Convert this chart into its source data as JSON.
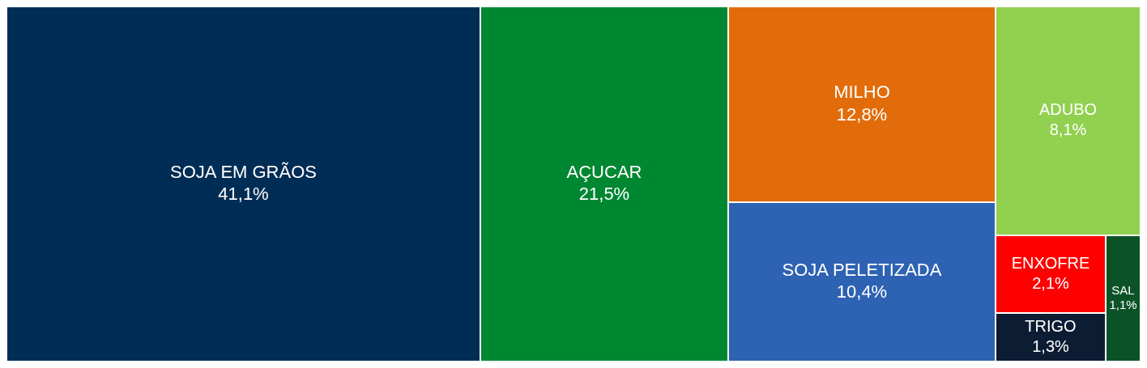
{
  "chart_data": {
    "type": "other",
    "categories": [
      "SOJA EM GRÃOS",
      "AÇUCAR",
      "MILHO",
      "SOJA PELETIZADA",
      "ADUBO",
      "ENXOFRE",
      "TRIGO",
      "SAL"
    ],
    "values": [
      41.1,
      21.5,
      12.8,
      10.4,
      8.1,
      2.1,
      1.3,
      1.1
    ],
    "value_labels": [
      "41,1%",
      "21,5%",
      "12,8%",
      "10,4%",
      "8,1%",
      "2,1%",
      "1,3%",
      "1,1%"
    ],
    "colors": [
      "#002d55",
      "#008732",
      "#e36c0a",
      "#2e62b3",
      "#92d050",
      "#ff0000",
      "#0c1c33",
      "#0b5327"
    ]
  }
}
